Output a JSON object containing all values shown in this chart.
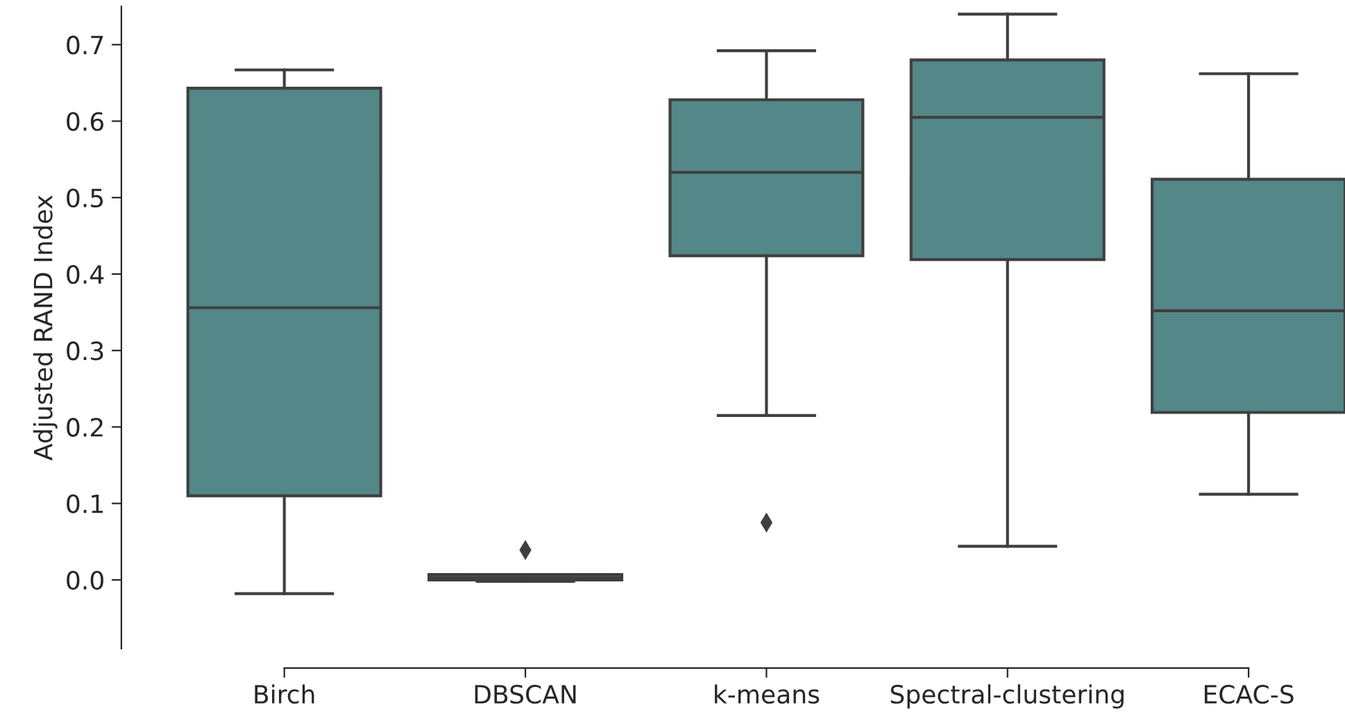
{
  "chart_data": {
    "type": "box",
    "ylabel": "Adjusted RAND Index",
    "categories": [
      "Birch",
      "DBSCAN",
      "k-means",
      "Spectral-clustering",
      "ECAC-S"
    ],
    "boxes": [
      {
        "low": -0.018,
        "q1": 0.11,
        "median": 0.356,
        "q3": 0.643,
        "high": 0.667
      },
      {
        "low": -0.002,
        "q1": 0.0,
        "median": 0.003,
        "q3": 0.007,
        "high": 0.007,
        "outliers": [
          0.039
        ]
      },
      {
        "low": 0.215,
        "q1": 0.424,
        "median": 0.533,
        "q3": 0.628,
        "high": 0.692,
        "outliers": [
          0.075
        ]
      },
      {
        "low": 0.044,
        "q1": 0.419,
        "median": 0.605,
        "q3": 0.68,
        "high": 0.74
      },
      {
        "low": 0.112,
        "q1": 0.219,
        "median": 0.352,
        "q3": 0.524,
        "high": 0.662
      }
    ],
    "color": "#548787",
    "marker": "diamond",
    "ylim": [
      -0.09,
      0.75
    ],
    "yticks": [
      {
        "value": 0,
        "label": "0.0"
      },
      0.1,
      0.2,
      0.3,
      0.4,
      0.5,
      0.6,
      0.7
    ],
    "grid": false
  }
}
